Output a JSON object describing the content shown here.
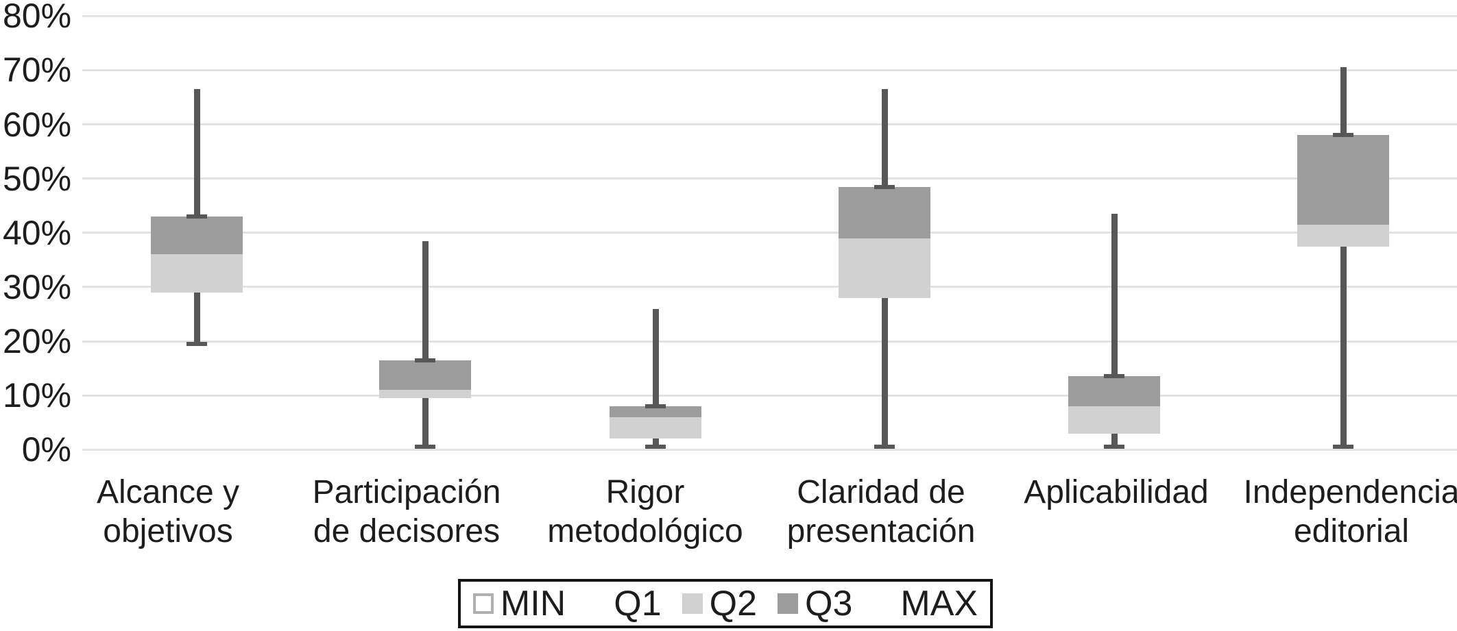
{
  "chart_data": {
    "type": "boxplot",
    "title": "",
    "xlabel": "",
    "ylabel": "",
    "ylim": [
      0,
      80
    ],
    "grid": true,
    "ytick_labels": [
      "0%",
      "10%",
      "20%",
      "30%",
      "40%",
      "50%",
      "60%",
      "70%",
      "80%"
    ],
    "categories": [
      "Alcance y objetivos",
      "Participación de decisores",
      "Rigor metodológico",
      "Claridad de presentación",
      "Aplicabilidad",
      "Independencia editorial"
    ],
    "category_label_lines": [
      [
        "Alcance y",
        "objetivos"
      ],
      [
        "Participación",
        "de decisores"
      ],
      [
        "Rigor",
        "metodológico"
      ],
      [
        "Claridad de",
        "presentación"
      ],
      [
        "Aplicabilidad"
      ],
      [
        "Independencia",
        "editorial"
      ]
    ],
    "series": [
      {
        "name": "MIN",
        "values": [
          19.5,
          0.5,
          0.5,
          0.5,
          0.5,
          0.5
        ]
      },
      {
        "name": "Q1",
        "values": [
          29,
          9.5,
          2,
          28,
          3,
          37.5
        ]
      },
      {
        "name": "Q2",
        "values": [
          36,
          11,
          6,
          39,
          8,
          41.5
        ]
      },
      {
        "name": "Q3",
        "values": [
          43,
          16.5,
          8,
          48.5,
          13.5,
          58
        ]
      },
      {
        "name": "MAX",
        "values": [
          66.5,
          38.5,
          26,
          66.5,
          43.5,
          70.5
        ]
      }
    ],
    "legend": {
      "position": "bottom",
      "entries": [
        {
          "label": "MIN",
          "swatch": "outline"
        },
        {
          "label": "Q1",
          "swatch": "none"
        },
        {
          "label": "Q2",
          "swatch": "light"
        },
        {
          "label": "Q3",
          "swatch": "dark"
        },
        {
          "label": "MAX",
          "swatch": "none"
        }
      ]
    },
    "colors": {
      "q2_fill": "#d1d1d1",
      "q3_fill": "#9c9c9c",
      "whisker": "#575757",
      "gridline": "#e2e2e2",
      "text": "#1d1d1d",
      "legend_border": "#141414",
      "min_swatch_border": "#b0b0b0",
      "background": "#ffffff"
    }
  }
}
